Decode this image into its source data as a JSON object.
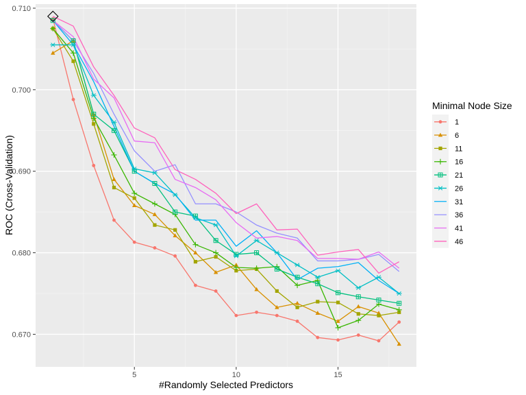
{
  "chart_data": {
    "type": "line",
    "title": "",
    "xlabel": "#Randomly Selected Predictors",
    "ylabel": "ROC (Cross-Validation)",
    "xlim": [
      0.15,
      18.85
    ],
    "ylim": [
      0.666,
      0.7105
    ],
    "x_ticks": [
      5,
      10,
      15
    ],
    "x_tick_labels": [
      "5",
      "10",
      "15"
    ],
    "y_ticks": [
      0.67,
      0.68,
      0.69,
      0.7,
      0.71
    ],
    "y_tick_labels": [
      "0.670",
      "0.680",
      "0.690",
      "0.700",
      "0.710"
    ],
    "grid": true,
    "legend_title": "Minimal Node Size",
    "legend_position": "right",
    "x": [
      1,
      2,
      3,
      4,
      5,
      6,
      7,
      8,
      9,
      10,
      11,
      12,
      13,
      14,
      15,
      16,
      17,
      18
    ],
    "best_point": {
      "x": 1,
      "y": 0.709
    },
    "series": [
      {
        "name": "1",
        "color": "#F8766D",
        "marker": "circle",
        "values": [
          0.7087,
          0.6988,
          0.6907,
          0.684,
          0.6813,
          0.6806,
          0.6796,
          0.676,
          0.6753,
          0.6723,
          0.6727,
          0.6723,
          0.6716,
          0.6696,
          0.6693,
          0.6699,
          0.6692,
          0.6715
        ]
      },
      {
        "name": "6",
        "color": "#D89000",
        "marker": "triangle",
        "values": [
          0.7045,
          0.706,
          0.697,
          0.689,
          0.6858,
          0.6847,
          0.6821,
          0.68,
          0.6776,
          0.6785,
          0.6755,
          0.6733,
          0.6738,
          0.6726,
          0.6716,
          0.6734,
          0.6726,
          0.6688
        ]
      },
      {
        "name": "11",
        "color": "#A3A500",
        "marker": "square",
        "values": [
          0.7075,
          0.7035,
          0.6958,
          0.688,
          0.6867,
          0.6834,
          0.6828,
          0.6789,
          0.6795,
          0.6778,
          0.678,
          0.6753,
          0.6733,
          0.674,
          0.6739,
          0.6725,
          0.6723,
          0.6727
        ]
      },
      {
        "name": "16",
        "color": "#39B600",
        "marker": "plus",
        "values": [
          0.7075,
          0.7045,
          0.6965,
          0.692,
          0.6873,
          0.686,
          0.6847,
          0.681,
          0.68,
          0.6782,
          0.6781,
          0.6783,
          0.676,
          0.6766,
          0.6708,
          0.6717,
          0.6737,
          0.673
        ]
      },
      {
        "name": "21",
        "color": "#00BF7D",
        "marker": "boxplus",
        "values": [
          0.7085,
          0.706,
          0.697,
          0.695,
          0.69,
          0.6885,
          0.685,
          0.6845,
          0.6815,
          0.6798,
          0.68,
          0.678,
          0.677,
          0.6762,
          0.6751,
          0.6746,
          0.6742,
          0.6738
        ]
      },
      {
        "name": "26",
        "color": "#00BFC4",
        "marker": "asterisk",
        "values": [
          0.7055,
          0.7055,
          0.6993,
          0.696,
          0.6903,
          0.6898,
          0.6871,
          0.6843,
          0.6834,
          0.6796,
          0.6815,
          0.68,
          0.6785,
          0.677,
          0.6778,
          0.6757,
          0.677,
          0.675
        ]
      },
      {
        "name": "31",
        "color": "#00B0F6",
        "marker": "none",
        "values": [
          0.7085,
          0.7055,
          0.701,
          0.6955,
          0.69,
          0.6885,
          0.6872,
          0.684,
          0.684,
          0.6808,
          0.6827,
          0.68,
          0.6767,
          0.6781,
          0.6783,
          0.6788,
          0.6766,
          0.675
        ]
      },
      {
        "name": "36",
        "color": "#9590FF",
        "marker": "none",
        "values": [
          0.7085,
          0.706,
          0.702,
          0.697,
          0.6925,
          0.69,
          0.6908,
          0.686,
          0.686,
          0.685,
          0.6834,
          0.6824,
          0.6818,
          0.679,
          0.679,
          0.6792,
          0.6798,
          0.6777
        ]
      },
      {
        "name": "41",
        "color": "#E76BF3",
        "marker": "none",
        "values": [
          0.7085,
          0.7065,
          0.7013,
          0.699,
          0.6937,
          0.6935,
          0.689,
          0.688,
          0.6865,
          0.6837,
          0.6818,
          0.682,
          0.6815,
          0.6793,
          0.6793,
          0.6792,
          0.6801,
          0.6781
        ]
      },
      {
        "name": "46",
        "color": "#FF62BC",
        "marker": "none",
        "values": [
          0.709,
          0.7078,
          0.7028,
          0.6993,
          0.6953,
          0.6941,
          0.6902,
          0.689,
          0.6873,
          0.6848,
          0.686,
          0.6828,
          0.6829,
          0.6797,
          0.6801,
          0.6804,
          0.6775,
          0.6789
        ]
      }
    ]
  }
}
